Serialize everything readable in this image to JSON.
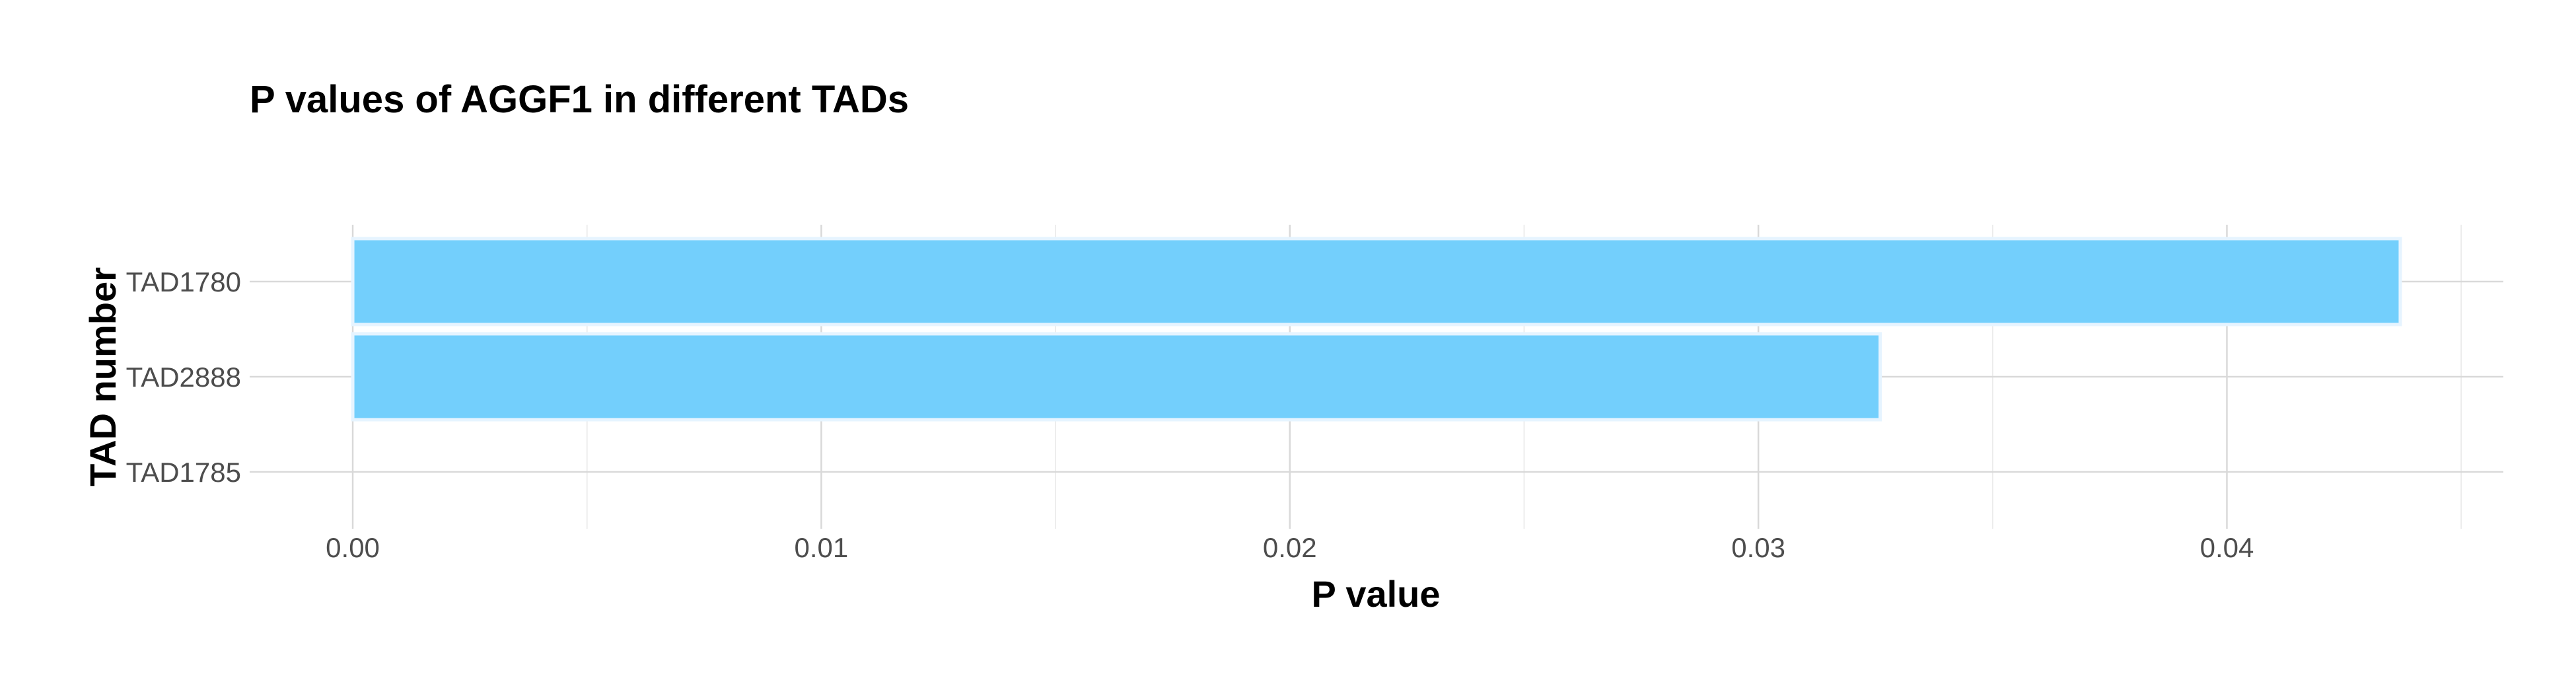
{
  "chart_data": {
    "type": "bar",
    "orientation": "horizontal",
    "title": "P values of AGGF1 in different TADs",
    "xlabel": "P value",
    "ylabel": "TAD number",
    "categories": [
      "TAD1780",
      "TAD2888",
      "TAD1785"
    ],
    "values": [
      0.0437,
      0.0326,
      0
    ],
    "xlim": [
      -0.0022,
      0.0459
    ],
    "xticks": [
      0,
      0.01,
      0.02,
      0.03,
      0.04
    ],
    "xtick_labels": [
      "0.00",
      "0.01",
      "0.02",
      "0.03",
      "0.04"
    ],
    "grid": true,
    "legend": "none",
    "bar_color": "#73cffc"
  }
}
